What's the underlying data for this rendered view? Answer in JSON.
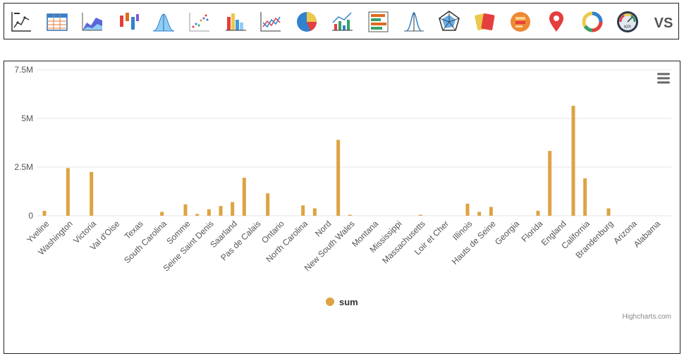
{
  "toolbar": {
    "items": [
      {
        "name": "line-chart-icon",
        "kind": "line"
      },
      {
        "name": "table-icon",
        "kind": "table"
      },
      {
        "name": "area-chart-icon",
        "kind": "area"
      },
      {
        "name": "candlestick-chart-icon",
        "kind": "candle"
      },
      {
        "name": "bell-curve-icon",
        "kind": "bell"
      },
      {
        "name": "scatter-plot-icon",
        "kind": "scatter"
      },
      {
        "name": "bar-chart-icon",
        "kind": "bars"
      },
      {
        "name": "multi-line-chart-icon",
        "kind": "multiline"
      },
      {
        "name": "pie-chart-icon",
        "kind": "pie"
      },
      {
        "name": "combo-chart-icon",
        "kind": "combo"
      },
      {
        "name": "stacked-bar-chart-icon",
        "kind": "hbars"
      },
      {
        "name": "funnel-chart-icon",
        "kind": "funnel"
      },
      {
        "name": "radar-chart-icon",
        "kind": "radar"
      },
      {
        "name": "cards-icon",
        "kind": "cards"
      },
      {
        "name": "heatmap-icon",
        "kind": "heat"
      },
      {
        "name": "map-pin-icon",
        "kind": "pin"
      },
      {
        "name": "donut-chart-icon",
        "kind": "donut"
      },
      {
        "name": "gauge-kpi-icon",
        "kind": "gauge"
      },
      {
        "name": "versus-icon",
        "kind": "vs"
      }
    ],
    "gauge_label": "KPI",
    "vs_label": "VS"
  },
  "chart": {
    "credits": "Highcharts.com",
    "legend_label": "sum",
    "menu_icon": "hamburger-menu-icon"
  },
  "chart_data": {
    "type": "bar",
    "categories": [
      "Yveline",
      "Washington",
      "Victoria",
      "Val d'Oise",
      "Texas",
      "South Carolina",
      "Somme",
      "Seine Saint Denis",
      "Saarland",
      "Pas de Calais",
      "Ontario",
      "North Carolina",
      "Nord",
      "New South Wales",
      "Montana",
      "Mississippi",
      "Massachusetts",
      "Loir et Cher",
      "Illinois",
      "Hauts de Seine",
      "Georgia",
      "Florida",
      "England",
      "California",
      "Brandenburg",
      "Arizona",
      "Alabama"
    ],
    "series": [
      {
        "name": "sum",
        "color": "#DDA342",
        "values": [
          [
            250000,
            0
          ],
          [
            2450000,
            0
          ],
          [
            2250000,
            0
          ],
          [
            0,
            0
          ],
          [
            0,
            0
          ],
          [
            200000,
            0
          ],
          [
            580000,
            90000
          ],
          [
            330000,
            500000
          ],
          [
            700000,
            1950000
          ],
          [
            0,
            1150000
          ],
          [
            0,
            0
          ],
          [
            530000,
            380000
          ],
          [
            0,
            3900000
          ],
          [
            50000,
            0
          ],
          [
            0,
            0
          ],
          [
            0,
            0
          ],
          [
            50000,
            0
          ],
          [
            0,
            0
          ],
          [
            620000,
            200000
          ],
          [
            450000,
            0
          ],
          [
            0,
            0
          ],
          [
            250000,
            3330000
          ],
          [
            0,
            5650000
          ],
          [
            1920000,
            0
          ],
          [
            380000,
            0
          ],
          [
            0,
            0
          ],
          [
            0,
            0
          ]
        ]
      }
    ],
    "ylim": [
      0,
      7500000
    ],
    "yticks": [
      "0",
      "2.5M",
      "5M",
      "7.5M"
    ],
    "ytick_values": [
      0,
      2500000,
      5000000,
      7500000
    ],
    "legend": "bottom-center",
    "grid": true
  }
}
